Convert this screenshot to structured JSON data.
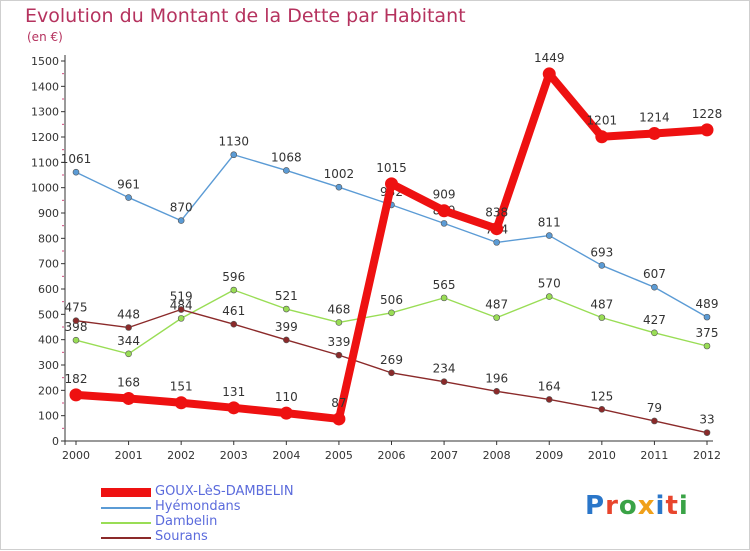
{
  "header": {
    "title": "Evolution du Montant de la Dette par Habitant",
    "unit": "(en €)"
  },
  "logo": {
    "text": "Proxiti",
    "colors": [
      "#2a76c9",
      "#e8452d",
      "#3aa346",
      "#f0a01a",
      "#2a76c9",
      "#e8452d",
      "#3aa346"
    ]
  },
  "chart_data": {
    "type": "line",
    "title": "Evolution du Montant de la Dette par Habitant",
    "subtitle": "(en €)",
    "xlabel": "",
    "ylabel": "",
    "x": [
      "2000",
      "2001",
      "2002",
      "2003",
      "2004",
      "2005",
      "2006",
      "2007",
      "2008",
      "2009",
      "2010",
      "2011",
      "2012"
    ],
    "ylim": [
      0,
      1500
    ],
    "yticks": [
      0,
      100,
      200,
      300,
      400,
      500,
      600,
      700,
      800,
      900,
      1000,
      1100,
      1200,
      1300,
      1400,
      1500
    ],
    "grid": false,
    "legend": "bottom-left",
    "series": [
      {
        "name": "GOUX-LèS-DAMBELIN",
        "color": "#ee1111",
        "emphasis": true,
        "values": [
          182,
          168,
          151,
          131,
          110,
          87,
          1015,
          909,
          838,
          1449,
          1201,
          1214,
          1228
        ]
      },
      {
        "name": "Hyémondans",
        "color": "#5b9bd5",
        "emphasis": false,
        "values": [
          1061,
          961,
          870,
          1130,
          1068,
          1002,
          932,
          859,
          784,
          811,
          693,
          607,
          489
        ]
      },
      {
        "name": "Dambelin",
        "color": "#99dd55",
        "emphasis": false,
        "values": [
          398,
          344,
          484,
          596,
          521,
          468,
          506,
          565,
          487,
          570,
          487,
          427,
          375
        ]
      },
      {
        "name": "Sourans",
        "color": "#8b2a2a",
        "emphasis": false,
        "values": [
          475,
          448,
          519,
          461,
          399,
          339,
          269,
          234,
          196,
          164,
          125,
          79,
          33
        ]
      }
    ]
  }
}
